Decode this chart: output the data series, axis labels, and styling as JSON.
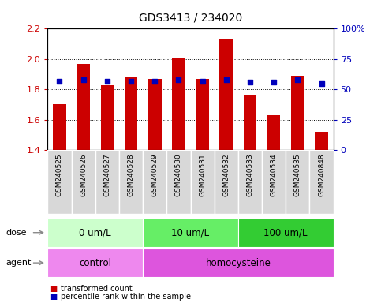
{
  "title": "GDS3413 / 234020",
  "samples": [
    "GSM240525",
    "GSM240526",
    "GSM240527",
    "GSM240528",
    "GSM240529",
    "GSM240530",
    "GSM240531",
    "GSM240532",
    "GSM240533",
    "GSM240534",
    "GSM240535",
    "GSM240848"
  ],
  "transformed_count": [
    1.7,
    1.97,
    1.83,
    1.88,
    1.87,
    2.01,
    1.87,
    2.13,
    1.76,
    1.63,
    1.89,
    1.52
  ],
  "percentile_rank": [
    57,
    58,
    57,
    57,
    57,
    58,
    57,
    58,
    56,
    56,
    58,
    55
  ],
  "ylim_left": [
    1.4,
    2.2
  ],
  "ylim_right": [
    0,
    100
  ],
  "yticks_left": [
    1.4,
    1.6,
    1.8,
    2.0,
    2.2
  ],
  "yticks_right": [
    0,
    25,
    50,
    75,
    100
  ],
  "ytick_labels_right": [
    "0",
    "25",
    "50",
    "75",
    "100%"
  ],
  "bar_color": "#cc0000",
  "dot_color": "#0000bb",
  "bar_bottom": 1.4,
  "dose_groups": [
    {
      "label": "0 um/L",
      "start": 0,
      "end": 4,
      "color": "#ccffcc"
    },
    {
      "label": "10 um/L",
      "start": 4,
      "end": 8,
      "color": "#66ee66"
    },
    {
      "label": "100 um/L",
      "start": 8,
      "end": 12,
      "color": "#33cc33"
    }
  ],
  "agent_groups": [
    {
      "label": "control",
      "start": 0,
      "end": 4,
      "color": "#ee88ee"
    },
    {
      "label": "homocysteine",
      "start": 4,
      "end": 12,
      "color": "#dd55dd"
    }
  ],
  "legend_items": [
    {
      "color": "#cc0000",
      "label": "transformed count"
    },
    {
      "color": "#0000bb",
      "label": "percentile rank within the sample"
    }
  ],
  "axis_label_color_left": "#cc0000",
  "axis_label_color_right": "#0000bb",
  "bg_color": "#ffffff",
  "sample_cell_color": "#d8d8d8",
  "sample_cell_border": "#ffffff"
}
